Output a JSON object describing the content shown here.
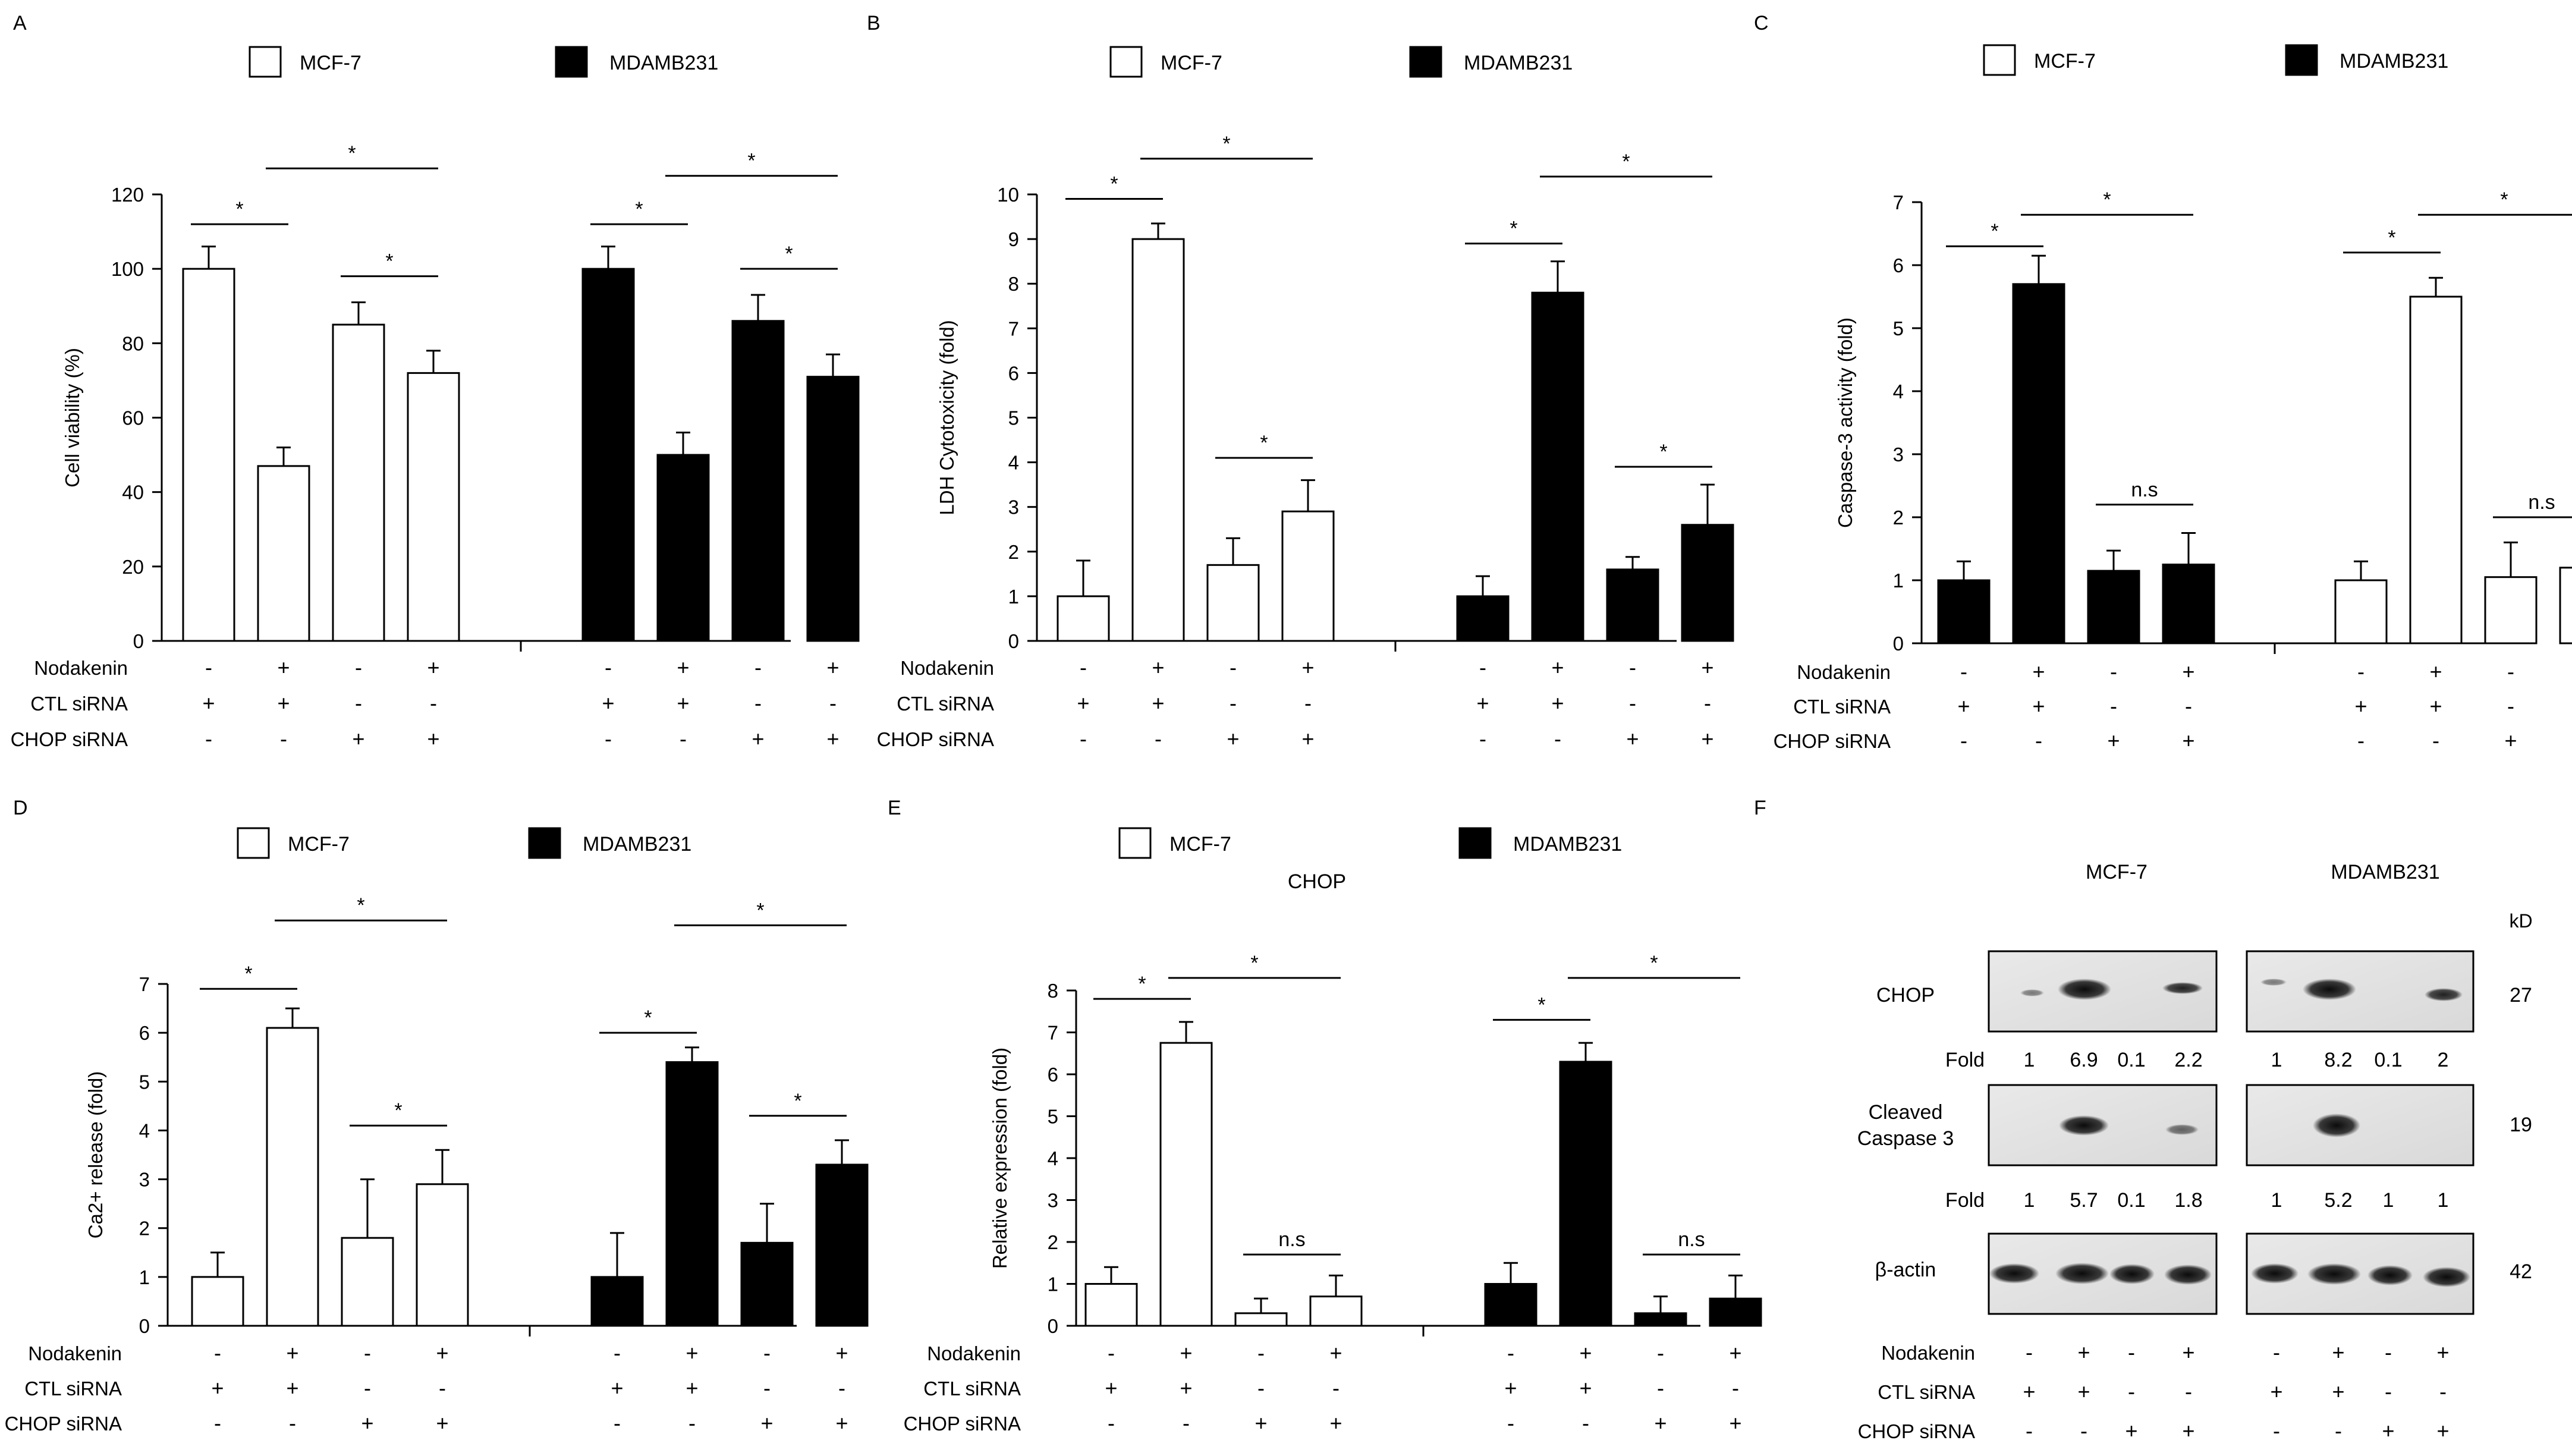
{
  "legend": {
    "mcf7": "MCF-7",
    "mda": "MDAMB231"
  },
  "row_labels": {
    "nodakenin": "Nodakenin",
    "ctl": "CTL siRNA",
    "chop": "CHOP  siRNA"
  },
  "treatments": {
    "nodakenin": [
      "-",
      "+",
      "-",
      "+",
      "-",
      "+",
      "-",
      "+"
    ],
    "ctl": [
      "+",
      "+",
      "-",
      "-",
      "+",
      "+",
      "-",
      "-"
    ],
    "chop": [
      "-",
      "-",
      "+",
      "+",
      "-",
      "-",
      "+",
      "+"
    ]
  },
  "chart_data": [
    {
      "panel": "A",
      "type": "bar",
      "title": "",
      "ylabel": "Cell viability (%)",
      "xlabel": "",
      "ylim": [
        0,
        120
      ],
      "ticks": [
        0,
        20,
        40,
        60,
        80,
        100,
        120
      ],
      "fills": [
        "#ffffff",
        "#ffffff",
        "#ffffff",
        "#ffffff",
        "#000000",
        "#000000",
        "#000000",
        "#000000"
      ],
      "series": [
        {
          "name": "MCF-7",
          "values": [
            100,
            47,
            85,
            72
          ],
          "errors": [
            6,
            5,
            6,
            6
          ]
        },
        {
          "name": "MDAMB231",
          "values": [
            100,
            50,
            86,
            71
          ],
          "errors": [
            6,
            6,
            7,
            6
          ]
        }
      ],
      "sig": [
        {
          "from": 0,
          "to": 1,
          "y": 112,
          "label": "*"
        },
        {
          "from": 1,
          "to": 3,
          "y": 127,
          "label": "*"
        },
        {
          "from": 2,
          "to": 3,
          "y": 98,
          "label": "*"
        },
        {
          "from": 4,
          "to": 5,
          "y": 112,
          "label": "*"
        },
        {
          "from": 5,
          "to": 7,
          "y": 125,
          "label": "*"
        },
        {
          "from": 6,
          "to": 7,
          "y": 100,
          "label": "*"
        }
      ]
    },
    {
      "panel": "B",
      "type": "bar",
      "title": "",
      "ylabel": "LDH Cytotoxicity (fold)",
      "xlabel": "",
      "ylim": [
        0,
        10
      ],
      "ticks": [
        0,
        1,
        2,
        3,
        4,
        5,
        6,
        7,
        8,
        9,
        10
      ],
      "fills": [
        "#ffffff",
        "#ffffff",
        "#ffffff",
        "#ffffff",
        "#000000",
        "#000000",
        "#000000",
        "#000000"
      ],
      "series": [
        {
          "name": "MCF-7",
          "values": [
            1,
            9,
            1.7,
            2.9
          ],
          "errors": [
            0.8,
            0.35,
            0.6,
            0.7
          ]
        },
        {
          "name": "MDAMB231",
          "values": [
            1,
            7.8,
            1.6,
            2.6
          ],
          "errors": [
            0.45,
            0.7,
            0.28,
            0.9
          ]
        }
      ],
      "sig": [
        {
          "from": 0,
          "to": 1,
          "y": 9.9,
          "label": "*"
        },
        {
          "from": 1,
          "to": 3,
          "y": 10.8,
          "label": "*"
        },
        {
          "from": 2,
          "to": 3,
          "y": 4.1,
          "label": "*"
        },
        {
          "from": 4,
          "to": 5,
          "y": 8.9,
          "label": "*"
        },
        {
          "from": 5,
          "to": 7,
          "y": 10.4,
          "label": "*"
        },
        {
          "from": 6,
          "to": 7,
          "y": 3.9,
          "label": "*"
        }
      ]
    },
    {
      "panel": "C",
      "type": "bar",
      "title": "",
      "ylabel": "Caspase-3 activity (fold)",
      "xlabel": "",
      "ylim": [
        0,
        7
      ],
      "ticks": [
        0,
        1,
        2,
        3,
        4,
        5,
        6,
        7
      ],
      "fills": [
        "#000000",
        "#000000",
        "#000000",
        "#000000",
        "#ffffff",
        "#ffffff",
        "#ffffff",
        "#ffffff"
      ],
      "series": [
        {
          "name": "MDAMB231",
          "values": [
            1,
            5.7,
            1.15,
            1.25
          ],
          "errors": [
            0.3,
            0.45,
            0.32,
            0.5
          ]
        },
        {
          "name": "MCF-7",
          "values": [
            1,
            5.5,
            1.05,
            1.2
          ],
          "errors": [
            0.3,
            0.3,
            0.55,
            0.4
          ]
        }
      ],
      "sig": [
        {
          "from": 0,
          "to": 1,
          "y": 6.3,
          "label": "*"
        },
        {
          "from": 1,
          "to": 3,
          "y": 6.8,
          "label": "*"
        },
        {
          "from": 2,
          "to": 3,
          "y": 2.2,
          "label": "n.s"
        },
        {
          "from": 4,
          "to": 5,
          "y": 6.2,
          "label": "*"
        },
        {
          "from": 5,
          "to": 7,
          "y": 6.8,
          "label": "*"
        },
        {
          "from": 6,
          "to": 7,
          "y": 2.0,
          "label": "n.s"
        }
      ]
    },
    {
      "panel": "D",
      "type": "bar",
      "title": "",
      "ylabel": "Ca2+ release (fold)",
      "xlabel": "",
      "ylim": [
        0,
        7
      ],
      "ticks": [
        0,
        1,
        2,
        3,
        4,
        5,
        6,
        7
      ],
      "fills": [
        "#ffffff",
        "#ffffff",
        "#ffffff",
        "#ffffff",
        "#000000",
        "#000000",
        "#000000",
        "#000000"
      ],
      "series": [
        {
          "name": "MCF-7",
          "values": [
            1,
            6.1,
            1.8,
            2.9
          ],
          "errors": [
            0.5,
            0.4,
            1.2,
            0.7
          ]
        },
        {
          "name": "MDAMB231",
          "values": [
            1,
            5.4,
            1.7,
            3.3
          ],
          "errors": [
            0.9,
            0.3,
            0.8,
            0.5
          ]
        }
      ],
      "sig": [
        {
          "from": 0,
          "to": 1,
          "y": 6.9,
          "label": "*"
        },
        {
          "from": 1,
          "to": 3,
          "y": 8.3,
          "label": "*"
        },
        {
          "from": 2,
          "to": 3,
          "y": 4.1,
          "label": "*"
        },
        {
          "from": 4,
          "to": 5,
          "y": 6.0,
          "label": "*"
        },
        {
          "from": 5,
          "to": 7,
          "y": 8.2,
          "label": "*"
        },
        {
          "from": 6,
          "to": 7,
          "y": 4.3,
          "label": "*"
        }
      ]
    },
    {
      "panel": "E",
      "type": "bar",
      "title": "CHOP",
      "ylabel": "Relative expression (fold)",
      "xlabel": "",
      "ylim": [
        0,
        8
      ],
      "ticks": [
        0,
        1,
        2,
        3,
        4,
        5,
        6,
        7,
        8
      ],
      "fills": [
        "#ffffff",
        "#ffffff",
        "#ffffff",
        "#ffffff",
        "#000000",
        "#000000",
        "#000000",
        "#000000"
      ],
      "series": [
        {
          "name": "MCF-7",
          "values": [
            1,
            6.75,
            0.3,
            0.7
          ],
          "errors": [
            0.4,
            0.5,
            0.35,
            0.5
          ]
        },
        {
          "name": "MDAMB231",
          "values": [
            1,
            6.3,
            0.3,
            0.65
          ],
          "errors": [
            0.5,
            0.45,
            0.4,
            0.55
          ]
        }
      ],
      "sig": [
        {
          "from": 0,
          "to": 1,
          "y": 7.8,
          "label": "*"
        },
        {
          "from": 1,
          "to": 3,
          "y": 8.3,
          "label": "*"
        },
        {
          "from": 2,
          "to": 3,
          "y": 1.7,
          "label": "n.s"
        },
        {
          "from": 4,
          "to": 5,
          "y": 7.3,
          "label": "*"
        },
        {
          "from": 5,
          "to": 7,
          "y": 8.3,
          "label": "*"
        },
        {
          "from": 6,
          "to": 7,
          "y": 1.7,
          "label": "n.s"
        }
      ]
    }
  ],
  "blot": {
    "panel": "F",
    "cell_lines": [
      "MCF-7",
      "MDAMB231"
    ],
    "kd_label": "kD",
    "fold_label": "Fold",
    "rows": [
      {
        "label": "CHOP",
        "kd": "27"
      },
      {
        "label": "Cleaved",
        "label2": "Caspase 3",
        "kd": "19"
      },
      {
        "label": "β-actin",
        "kd": "42"
      }
    ],
    "chop_fold": [
      "1",
      "6.9",
      "0.1",
      "2.2",
      "1",
      "8.2",
      "0.1",
      "2"
    ],
    "casp_fold": [
      "1",
      "5.7",
      "0.1",
      "1.8",
      "1",
      "5.2",
      "1",
      "1"
    ]
  }
}
